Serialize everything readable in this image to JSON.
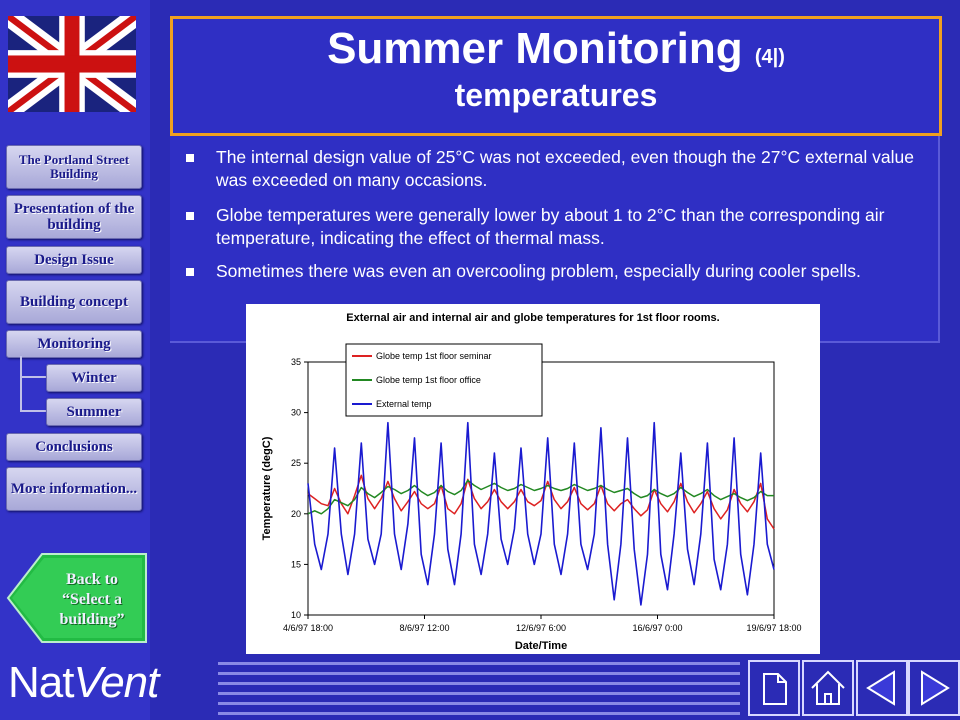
{
  "sidebar": {
    "items": [
      {
        "label": "The Portland Street Building"
      },
      {
        "label": "Presentation of the building"
      },
      {
        "label": "Design Issue"
      },
      {
        "label": "Building concept"
      },
      {
        "label": "Monitoring"
      },
      {
        "label": "Winter"
      },
      {
        "label": "Summer"
      },
      {
        "label": "Conclusions"
      },
      {
        "label": "More information..."
      }
    ],
    "back_button": {
      "line1": "Back to",
      "line2": "“Select a",
      "line3": "building”"
    },
    "flag_icon": "uk-flag-icon"
  },
  "logo": {
    "part1": "Nat",
    "part2": "Vent"
  },
  "title": {
    "main": "Summer Monitoring",
    "number": "(4|)",
    "sub": "temperatures"
  },
  "bullets": [
    "The internal design value of 25°C was not exceeded, even though the 27°C external value was exceeded on many occasions.",
    "Globe temperatures were generally lower by about 1 to 2°C than the corresponding air temperature, indicating the effect of thermal mass.",
    "Sometimes there was even an overcooling problem, especially during cooler spells."
  ],
  "footer_icons": [
    "page-icon",
    "home-icon",
    "previous-icon",
    "next-icon"
  ],
  "colors": {
    "background": "#2b2bb5",
    "title_border": "#f0a020",
    "seminar": "#dd2222",
    "office": "#228822",
    "external": "#1a1ad0"
  },
  "chart_data": {
    "type": "line",
    "title": "External air and internal air and globe temperatures for 1st floor rooms.",
    "xlabel": "Date/Time",
    "ylabel": "Temperature (degC)",
    "ylim": [
      10,
      35
    ],
    "yticks": [
      10,
      15,
      20,
      25,
      30,
      35
    ],
    "xticks": [
      "4/6/97 18:00",
      "8/6/97 12:00",
      "12/6/97 6:00",
      "16/6/97 0:00",
      "19/6/97 18:00"
    ],
    "x_start_hours": 0,
    "x_end_hours": 360,
    "legend_position": "top-left",
    "grid": false,
    "series": [
      {
        "name": "Globe temp 1st floor seminar",
        "color": "#dd2222",
        "values": [
          22,
          21.5,
          21,
          20.8,
          22.5,
          21,
          20,
          21.8,
          23.8,
          21.5,
          20.5,
          21.5,
          23.2,
          21.5,
          20.3,
          21.2,
          22.2,
          21,
          20.5,
          21,
          22.8,
          20.5,
          20,
          21,
          23.4,
          21.5,
          20.5,
          21.2,
          22.4,
          21.2,
          20.5,
          21.2,
          22.4,
          21.2,
          20.8,
          21.3,
          23.2,
          21.4,
          20.5,
          21.2,
          22.6,
          21,
          20.4,
          21,
          22.8,
          21,
          20.3,
          21,
          21.4,
          20.5,
          19.8,
          20.4,
          22.4,
          21,
          20.2,
          21.2,
          23,
          21.2,
          20.1,
          21,
          22.2,
          20.5,
          19.5,
          20.4,
          22.4,
          21,
          20.2,
          21.2,
          23,
          19.5,
          18.5
        ]
      },
      {
        "name": "Globe temp 1st floor office",
        "color": "#228822",
        "values": [
          20,
          20.3,
          20,
          20.5,
          21.4,
          21.1,
          20.8,
          21.4,
          22.6,
          22,
          21.6,
          22.1,
          22.7,
          22.4,
          22,
          22.3,
          22.8,
          22.2,
          21.8,
          22.1,
          22.8,
          22.2,
          21.9,
          22.3,
          23.3,
          22.8,
          22.4,
          22.7,
          23,
          22.6,
          22.3,
          22.5,
          22.9,
          22.6,
          22.3,
          22.5,
          22.8,
          22.5,
          22.3,
          22.5,
          22.9,
          22.6,
          22.3,
          22.5,
          22.8,
          22.4,
          22.1,
          22.3,
          22.5,
          22,
          21.6,
          21.8,
          22.4,
          22,
          21.7,
          22,
          22.6,
          22.1,
          21.7,
          22,
          22.4,
          21.8,
          21.4,
          21.7,
          22,
          21.6,
          21.3,
          21.6,
          22.2,
          21.8,
          21.8
        ]
      },
      {
        "name": "External temp",
        "color": "#1a1ad0",
        "values": [
          23,
          17,
          14.5,
          18,
          26.5,
          18,
          14,
          18,
          27,
          17.5,
          15,
          18,
          29,
          18,
          14.5,
          19,
          27.5,
          16,
          13,
          18,
          27,
          16.5,
          13,
          18,
          29,
          17,
          14,
          18,
          26,
          17.5,
          15,
          18.5,
          26.5,
          18,
          15,
          18,
          27.5,
          17,
          14,
          18,
          27,
          17,
          14.5,
          18,
          28.5,
          17,
          11.5,
          17,
          27.5,
          16.5,
          11,
          16,
          29,
          16,
          12.5,
          18,
          26,
          16.5,
          13,
          18,
          27,
          15.5,
          12.5,
          17,
          27.5,
          16,
          12,
          17,
          26,
          17,
          14.5
        ]
      }
    ]
  }
}
